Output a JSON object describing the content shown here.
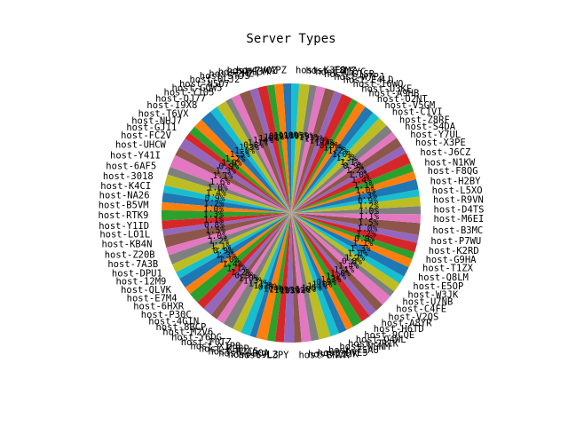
{
  "chart_data": {
    "type": "pie",
    "title": "Server Types",
    "start_angle_deg": 90,
    "counterclockwise": true,
    "show_percent": true,
    "percent_format": "1 decimal",
    "palette": [
      "#1f77b4",
      "#ff7f0e",
      "#2ca02c",
      "#d62728",
      "#9467bd",
      "#8c564b",
      "#e377c2",
      "#7f7f7f",
      "#bcbd22",
      "#17becf"
    ],
    "slices": [
      {
        "label": "host-WAPZ",
        "value": 1.0
      },
      {
        "label": "host-7VQZ",
        "value": 1.1
      },
      {
        "label": "host-8F3M",
        "value": 0.9
      },
      {
        "label": "host-2HZ4",
        "value": 1.2
      },
      {
        "label": "host-STJS",
        "value": 1.0
      },
      {
        "label": "host-0LJ2",
        "value": 1.4
      },
      {
        "label": "host-N5O7",
        "value": 1.1
      },
      {
        "label": "host-GQW5",
        "value": 0.8
      },
      {
        "label": "host-Y105",
        "value": 1.3
      },
      {
        "label": "host-QJ77",
        "value": 1.0
      },
      {
        "label": "host-I9X8",
        "value": 1.5
      },
      {
        "label": "host-T6VX",
        "value": 1.2
      },
      {
        "label": "host-NHJ7",
        "value": 1.0
      },
      {
        "label": "host-GJ11",
        "value": 0.9
      },
      {
        "label": "host-FC2V",
        "value": 1.3
      },
      {
        "label": "host-UHCW",
        "value": 1.1
      },
      {
        "label": "host-Y41I",
        "value": 1.6
      },
      {
        "label": "host-6AF5",
        "value": 1.0
      },
      {
        "label": "host-3018",
        "value": 1.4
      },
      {
        "label": "host-K4CI",
        "value": 0.9
      },
      {
        "label": "host-NA26",
        "value": 1.2
      },
      {
        "label": "host-B5VM",
        "value": 1.0
      },
      {
        "label": "host-RTK9",
        "value": 1.3
      },
      {
        "label": "host-Y1ID",
        "value": 1.1
      },
      {
        "label": "host-LO1L",
        "value": 0.8
      },
      {
        "label": "host-KB4N",
        "value": 1.5
      },
      {
        "label": "host-Z20B",
        "value": 1.0
      },
      {
        "label": "host-7A3B",
        "value": 1.2
      },
      {
        "label": "host-DPU1",
        "value": 1.1
      },
      {
        "label": "host-12M9",
        "value": 0.9
      },
      {
        "label": "host-QLVK",
        "value": 1.3
      },
      {
        "label": "host-E7M4",
        "value": 1.0
      },
      {
        "label": "host-6HXR",
        "value": 1.4
      },
      {
        "label": "host-P30C",
        "value": 1.1
      },
      {
        "label": "host-4GIN",
        "value": 1.2
      },
      {
        "label": "host-8BCP",
        "value": 0.9
      },
      {
        "label": "host-M2V6",
        "value": 1.0
      },
      {
        "label": "host-Y6DG",
        "value": 1.3
      },
      {
        "label": "host-F0TZ",
        "value": 1.1
      },
      {
        "label": "host-X1P8",
        "value": 1.2
      },
      {
        "label": "host-KB8P",
        "value": 0.8
      },
      {
        "label": "host-R2C5",
        "value": 1.4
      },
      {
        "label": "host-JB0A",
        "value": 1.0
      },
      {
        "label": "host-S9L3",
        "value": 1.1
      },
      {
        "label": "host-LZPY",
        "value": 1.3
      },
      {
        "label": "host-BNVR",
        "value": 0.9
      },
      {
        "label": "host-Z2JK",
        "value": 1.2
      },
      {
        "label": "host-DVE5",
        "value": 1.0
      },
      {
        "label": "host-7SAU",
        "value": 1.5
      },
      {
        "label": "host-NSNM",
        "value": 1.1
      },
      {
        "label": "host-2R1K",
        "value": 1.0
      },
      {
        "label": "host-O4WL",
        "value": 0.9
      },
      {
        "label": "host-9CQE",
        "value": 1.3
      },
      {
        "label": "host-H6TD",
        "value": 1.2
      },
      {
        "label": "host-A8YR",
        "value": 1.0
      },
      {
        "label": "host-V2QS",
        "value": 1.1
      },
      {
        "label": "host-C4FE",
        "value": 1.4
      },
      {
        "label": "host-U7NB",
        "value": 0.8
      },
      {
        "label": "host-W3JK",
        "value": 1.2
      },
      {
        "label": "host-E5OP",
        "value": 1.0
      },
      {
        "label": "host-Q8LM",
        "value": 1.3
      },
      {
        "label": "host-T1ZX",
        "value": 1.1
      },
      {
        "label": "host-G9HA",
        "value": 0.9
      },
      {
        "label": "host-K2RD",
        "value": 1.2
      },
      {
        "label": "host-P7WU",
        "value": 1.0
      },
      {
        "label": "host-B3MC",
        "value": 1.5
      },
      {
        "label": "host-M6EI",
        "value": 1.1
      },
      {
        "label": "host-D4TS",
        "value": 1.0
      },
      {
        "label": "host-R9VN",
        "value": 1.2
      },
      {
        "label": "host-L5XO",
        "value": 0.9
      },
      {
        "label": "host-H2BY",
        "value": 1.3
      },
      {
        "label": "host-F8QG",
        "value": 1.0
      },
      {
        "label": "host-N1KW",
        "value": 1.1
      },
      {
        "label": "host-J6CZ",
        "value": 1.4
      },
      {
        "label": "host-X3PE",
        "value": 1.0
      },
      {
        "label": "host-Y7UL",
        "value": 1.2
      },
      {
        "label": "host-S4DA",
        "value": 0.9
      },
      {
        "label": "host-Z8RF",
        "value": 1.1
      },
      {
        "label": "host-C1VI",
        "value": 1.3
      },
      {
        "label": "host-V5GM",
        "value": 1.0
      },
      {
        "label": "host-O2NT",
        "value": 1.2
      },
      {
        "label": "host-A9HB",
        "value": 1.1
      },
      {
        "label": "host-U3KE",
        "value": 0.8
      },
      {
        "label": "host-I6WQ",
        "value": 1.4
      },
      {
        "label": "host-E4LD",
        "value": 1.0
      },
      {
        "label": "host-W7PJ",
        "value": 1.2
      },
      {
        "label": "host-G1SR",
        "value": 1.1
      },
      {
        "label": "host-Q5YC",
        "value": 0.9
      },
      {
        "label": "host-T8MZ",
        "value": 1.3
      },
      {
        "label": "host-K3FO",
        "value": 1.0
      }
    ]
  }
}
